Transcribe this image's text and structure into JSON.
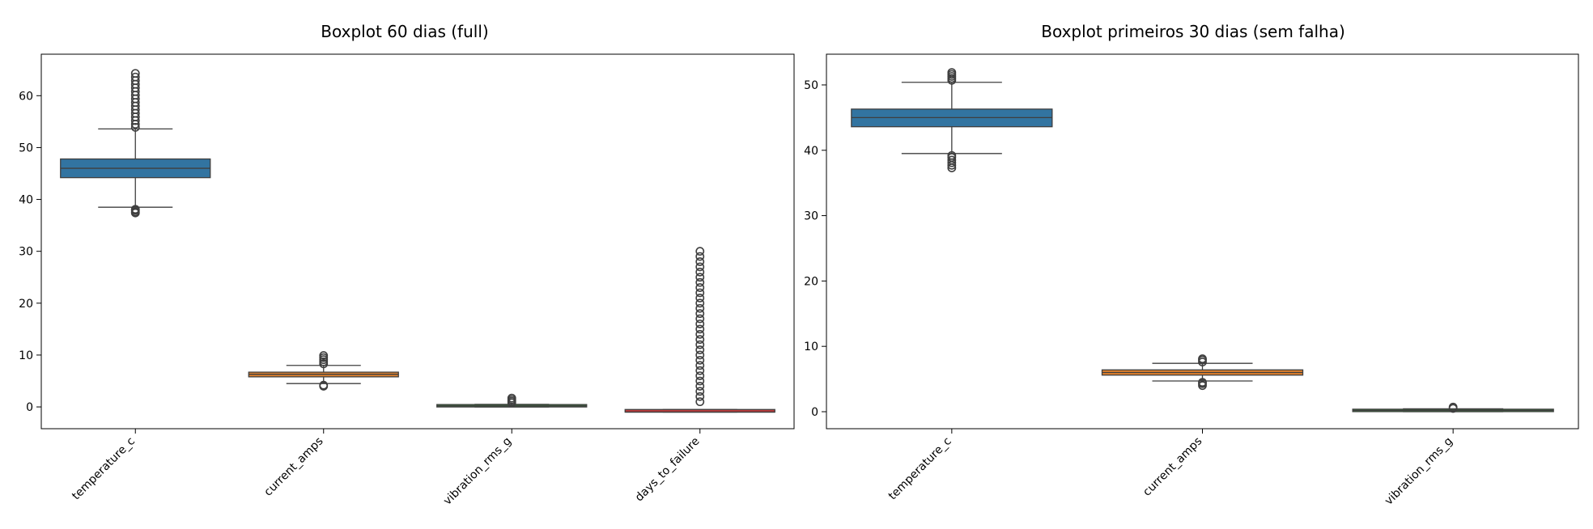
{
  "chart_data": [
    {
      "type": "boxplot",
      "title": "Boxplot 60 dias (full)",
      "xlabel": "",
      "ylabel": "",
      "ylim": [
        -4.2,
        68.0
      ],
      "yticks": [
        0,
        10,
        20,
        30,
        40,
        50,
        60
      ],
      "grid": false,
      "categories": [
        "temperature_c",
        "current_amps",
        "vibration_rms_g",
        "days_to_failure"
      ],
      "series": [
        {
          "category": "temperature_c",
          "color": "#3274a1",
          "whisker_low": 38.5,
          "q1": 44.2,
          "median": 46.0,
          "q3": 47.8,
          "whisker_high": 53.6,
          "outliers_low": [
            37.4,
            37.6,
            37.9,
            38.1
          ],
          "outliers_high": [
            53.9,
            54.5,
            55.2,
            55.9,
            56.6,
            57.3,
            58.0,
            58.7,
            59.4,
            60.1,
            60.8,
            61.5,
            62.2,
            62.9,
            63.6,
            64.3
          ]
        },
        {
          "category": "current_amps",
          "color": "#e1812c",
          "whisker_low": 4.5,
          "q1": 5.8,
          "median": 6.3,
          "q3": 6.7,
          "whisker_high": 8.0,
          "outliers_low": [
            4.0,
            4.2
          ],
          "outliers_high": [
            8.3,
            8.7,
            9.1,
            9.5,
            9.9
          ]
        },
        {
          "category": "vibration_rms_g",
          "color": "#3a923a",
          "whisker_low": 0.0,
          "q1": 0.1,
          "median": 0.2,
          "q3": 0.35,
          "whisker_high": 0.5,
          "outliers_low": [],
          "outliers_high": [
            0.8,
            1.1,
            1.4,
            1.7
          ]
        },
        {
          "category": "days_to_failure",
          "color": "#c03d3e",
          "whisker_low": -1.0,
          "q1": -1.0,
          "median": -1.0,
          "q3": -0.5,
          "whisker_high": -0.5,
          "outliers_low": [],
          "outliers_high": [
            1,
            2,
            3,
            4,
            5,
            6,
            7,
            8,
            9,
            10,
            11,
            12,
            13,
            14,
            15,
            16,
            17,
            18,
            19,
            20,
            21,
            22,
            23,
            24,
            25,
            26,
            27,
            28,
            29,
            30
          ]
        }
      ]
    },
    {
      "type": "boxplot",
      "title": "Boxplot primeiros 30 dias (sem falha)",
      "xlabel": "",
      "ylabel": "",
      "ylim": [
        -2.6,
        54.7
      ],
      "yticks": [
        0,
        10,
        20,
        30,
        40,
        50
      ],
      "grid": false,
      "categories": [
        "temperature_c",
        "current_amps",
        "vibration_rms_g"
      ],
      "series": [
        {
          "category": "temperature_c",
          "color": "#3274a1",
          "whisker_low": 39.5,
          "q1": 43.6,
          "median": 45.0,
          "q3": 46.3,
          "whisker_high": 50.4,
          "outliers_low": [
            37.3,
            37.7,
            38.1,
            38.5,
            38.9,
            39.2
          ],
          "outliers_high": [
            50.7,
            51.0,
            51.3,
            51.6,
            51.9
          ]
        },
        {
          "category": "current_amps",
          "color": "#e1812c",
          "whisker_low": 4.7,
          "q1": 5.6,
          "median": 6.0,
          "q3": 6.4,
          "whisker_high": 7.4,
          "outliers_low": [
            4.0,
            4.3,
            4.5
          ],
          "outliers_high": [
            7.6,
            7.9,
            8.1
          ]
        },
        {
          "category": "vibration_rms_g",
          "color": "#3a923a",
          "whisker_low": 0.0,
          "q1": 0.1,
          "median": 0.2,
          "q3": 0.3,
          "whisker_high": 0.45,
          "outliers_low": [],
          "outliers_high": [
            0.5,
            0.7
          ]
        }
      ]
    }
  ]
}
